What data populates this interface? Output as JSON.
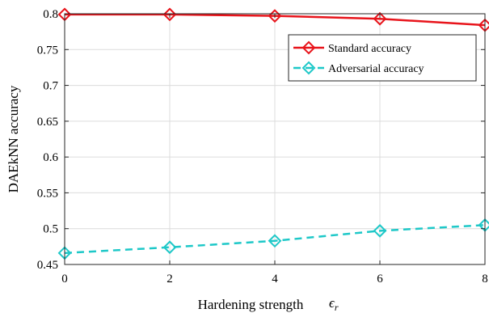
{
  "chart_data": {
    "type": "line",
    "xlabel": "Hardening strength",
    "xlabel_symbol": "ϵ",
    "xlabel_subscript": "r",
    "ylabel": "DAEkNN accuracy",
    "xlim": [
      0,
      8
    ],
    "ylim": [
      0.45,
      0.8
    ],
    "xticks": [
      0,
      2,
      4,
      6,
      8
    ],
    "yticks": [
      0.45,
      0.5,
      0.55,
      0.6,
      0.65,
      0.7,
      0.75,
      0.8
    ],
    "xtick_labels": [
      "0",
      "2",
      "4",
      "6",
      "8"
    ],
    "ytick_labels": [
      "0.45",
      "0.5",
      "0.55",
      "0.6",
      "0.65",
      "0.7",
      "0.75",
      "0.8"
    ],
    "grid": true,
    "legend_position": "top-right",
    "x": [
      0,
      2,
      4,
      6,
      8
    ],
    "series": [
      {
        "name": "Standard accuracy",
        "values": [
          0.799,
          0.799,
          0.797,
          0.793,
          0.784
        ],
        "color": "#e8141b",
        "line": "solid",
        "marker": "diamond"
      },
      {
        "name": "Adversarial accuracy",
        "values": [
          0.466,
          0.474,
          0.483,
          0.497,
          0.505
        ],
        "color": "#1ec8c8",
        "line": "dashed",
        "marker": "diamond"
      }
    ]
  }
}
